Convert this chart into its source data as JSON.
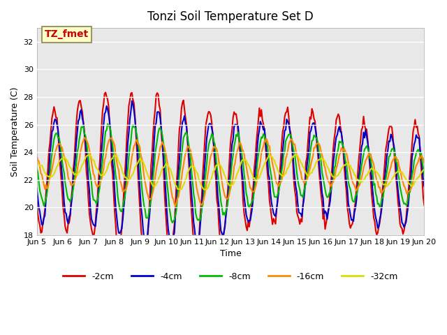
{
  "title": "Tonzi Soil Temperature Set D",
  "xlabel": "Time",
  "ylabel": "Soil Temperature (C)",
  "ylim": [
    18,
    33
  ],
  "annotation": "TZ_fmet",
  "annotation_box_color": "#ffffcc",
  "annotation_text_color": "#cc0000",
  "plot_bg_color": "#e8e8e8",
  "line_colors": [
    "#dd0000",
    "#0000cc",
    "#00bb00",
    "#ff8800",
    "#dddd00"
  ],
  "line_labels": [
    "-2cm",
    "-4cm",
    "-8cm",
    "-16cm",
    "-32cm"
  ],
  "line_width": 1.5,
  "yticks": [
    18,
    20,
    22,
    24,
    26,
    28,
    30,
    32
  ],
  "xtick_labels": [
    "Jun 5",
    "Jun 6",
    "Jun 7",
    "Jun 8",
    "Jun 9",
    "Jun 10",
    "Jun 11",
    "Jun 12",
    "Jun 13",
    "Jun 14",
    "Jun 15",
    "Jun 16",
    "Jun 17",
    "Jun 18",
    "Jun 19",
    "Jun 20"
  ],
  "n_points": 384,
  "days": 15
}
